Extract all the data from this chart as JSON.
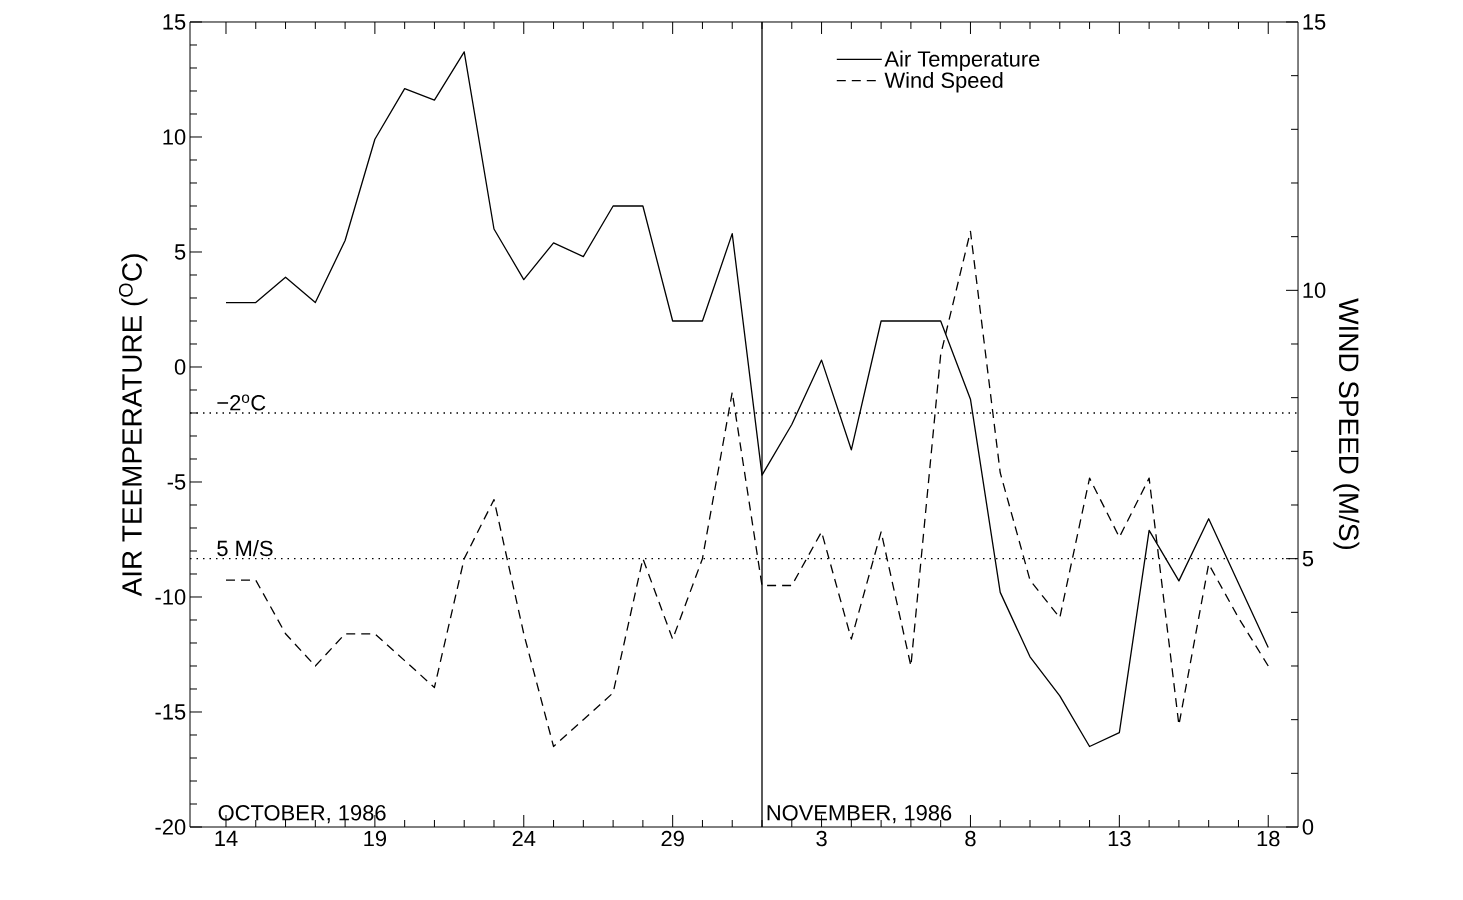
{
  "chart_data": {
    "type": "line",
    "ylabel": "AIR TEEMPERATURE ($^{O}$C)",
    "y2label": "WIND SPEED (M/S)",
    "x": [
      "1986-10-14",
      "1986-10-15",
      "1986-10-16",
      "1986-10-17",
      "1986-10-18",
      "1986-10-19",
      "1986-10-20",
      "1986-10-21",
      "1986-10-22",
      "1986-10-23",
      "1986-10-24",
      "1986-10-25",
      "1986-10-26",
      "1986-10-27",
      "1986-10-28",
      "1986-10-29",
      "1986-10-30",
      "1986-10-31",
      "1986-11-01",
      "1986-11-02",
      "1986-11-03",
      "1986-11-04",
      "1986-11-05",
      "1986-11-06",
      "1986-11-07",
      "1986-11-08",
      "1986-11-09",
      "1986-11-10",
      "1986-11-11",
      "1986-11-12",
      "1986-11-13",
      "1986-11-14",
      "1986-11-15",
      "1986-11-16",
      "1986-11-17",
      "1986-11-18"
    ],
    "series": [
      {
        "name": "Air Temperature",
        "color": "#000000",
        "line_style": "solid",
        "values": [
          2.8,
          2.8,
          3.9,
          2.8,
          5.5,
          9.9,
          12.1,
          11.6,
          13.7,
          6.0,
          3.8,
          5.4,
          4.8,
          7.0,
          7.0,
          2.0,
          2.0,
          5.8,
          -4.7,
          -2.5,
          0.3,
          -3.6,
          2.0,
          2.0,
          2.0,
          -1.4,
          -9.8,
          -12.6,
          -14.3,
          -16.5,
          -15.9,
          -7.1,
          -9.3,
          -6.6,
          -9.4,
          -12.2
        ]
      },
      {
        "name": "Wind Speed",
        "color": "#000000",
        "line_style": "dashed",
        "axis": "y2",
        "values": [
          4.6,
          4.6,
          3.6,
          3.0,
          3.6,
          3.6,
          3.1,
          2.6,
          5.0,
          6.1,
          3.6,
          1.5,
          2.0,
          2.5,
          5.0,
          3.5,
          5.0,
          8.1,
          4.5,
          4.5,
          5.5,
          3.5,
          5.5,
          3.0,
          8.8,
          11.1,
          6.6,
          4.6,
          3.9,
          6.5,
          5.4,
          6.5,
          1.9,
          4.9,
          3.9,
          3.0
        ]
      }
    ],
    "xlim": [
      "1986-10-12T19:00",
      "1986-11-19"
    ],
    "xticks": [
      {
        "value": "1986-10-14",
        "label": "14"
      },
      {
        "value": "1986-10-19",
        "label": "19"
      },
      {
        "value": "1986-10-24",
        "label": "24"
      },
      {
        "value": "1986-10-29",
        "label": "29"
      },
      {
        "value": "1986-11-03",
        "label": "3"
      },
      {
        "value": "1986-11-08",
        "label": "8"
      },
      {
        "value": "1986-11-13",
        "label": "13"
      },
      {
        "value": "1986-11-18",
        "label": "18"
      }
    ],
    "ylim": [
      -20,
      15
    ],
    "yticks": [
      -20,
      -15,
      -10,
      -5,
      0,
      5,
      10,
      15
    ],
    "y2lim": [
      0,
      15
    ],
    "y2ticks": [
      0,
      5,
      10,
      15
    ],
    "ref_lines": [
      {
        "axis": "y",
        "value": -2,
        "label": "−2$^{o}$C",
        "line_style": "dotted",
        "color": "#000000"
      },
      {
        "axis": "y2",
        "value": 5,
        "label": "5 M/S",
        "line_style": "dotted",
        "color": "#000000"
      },
      {
        "axis": "x",
        "value": "1986-11-01",
        "line_style": "solid",
        "color": "#000000"
      }
    ],
    "annotations": [
      "OCTOBER, 1986",
      "NOVEMBER, 1986"
    ],
    "legend": "top right",
    "grid": false
  }
}
